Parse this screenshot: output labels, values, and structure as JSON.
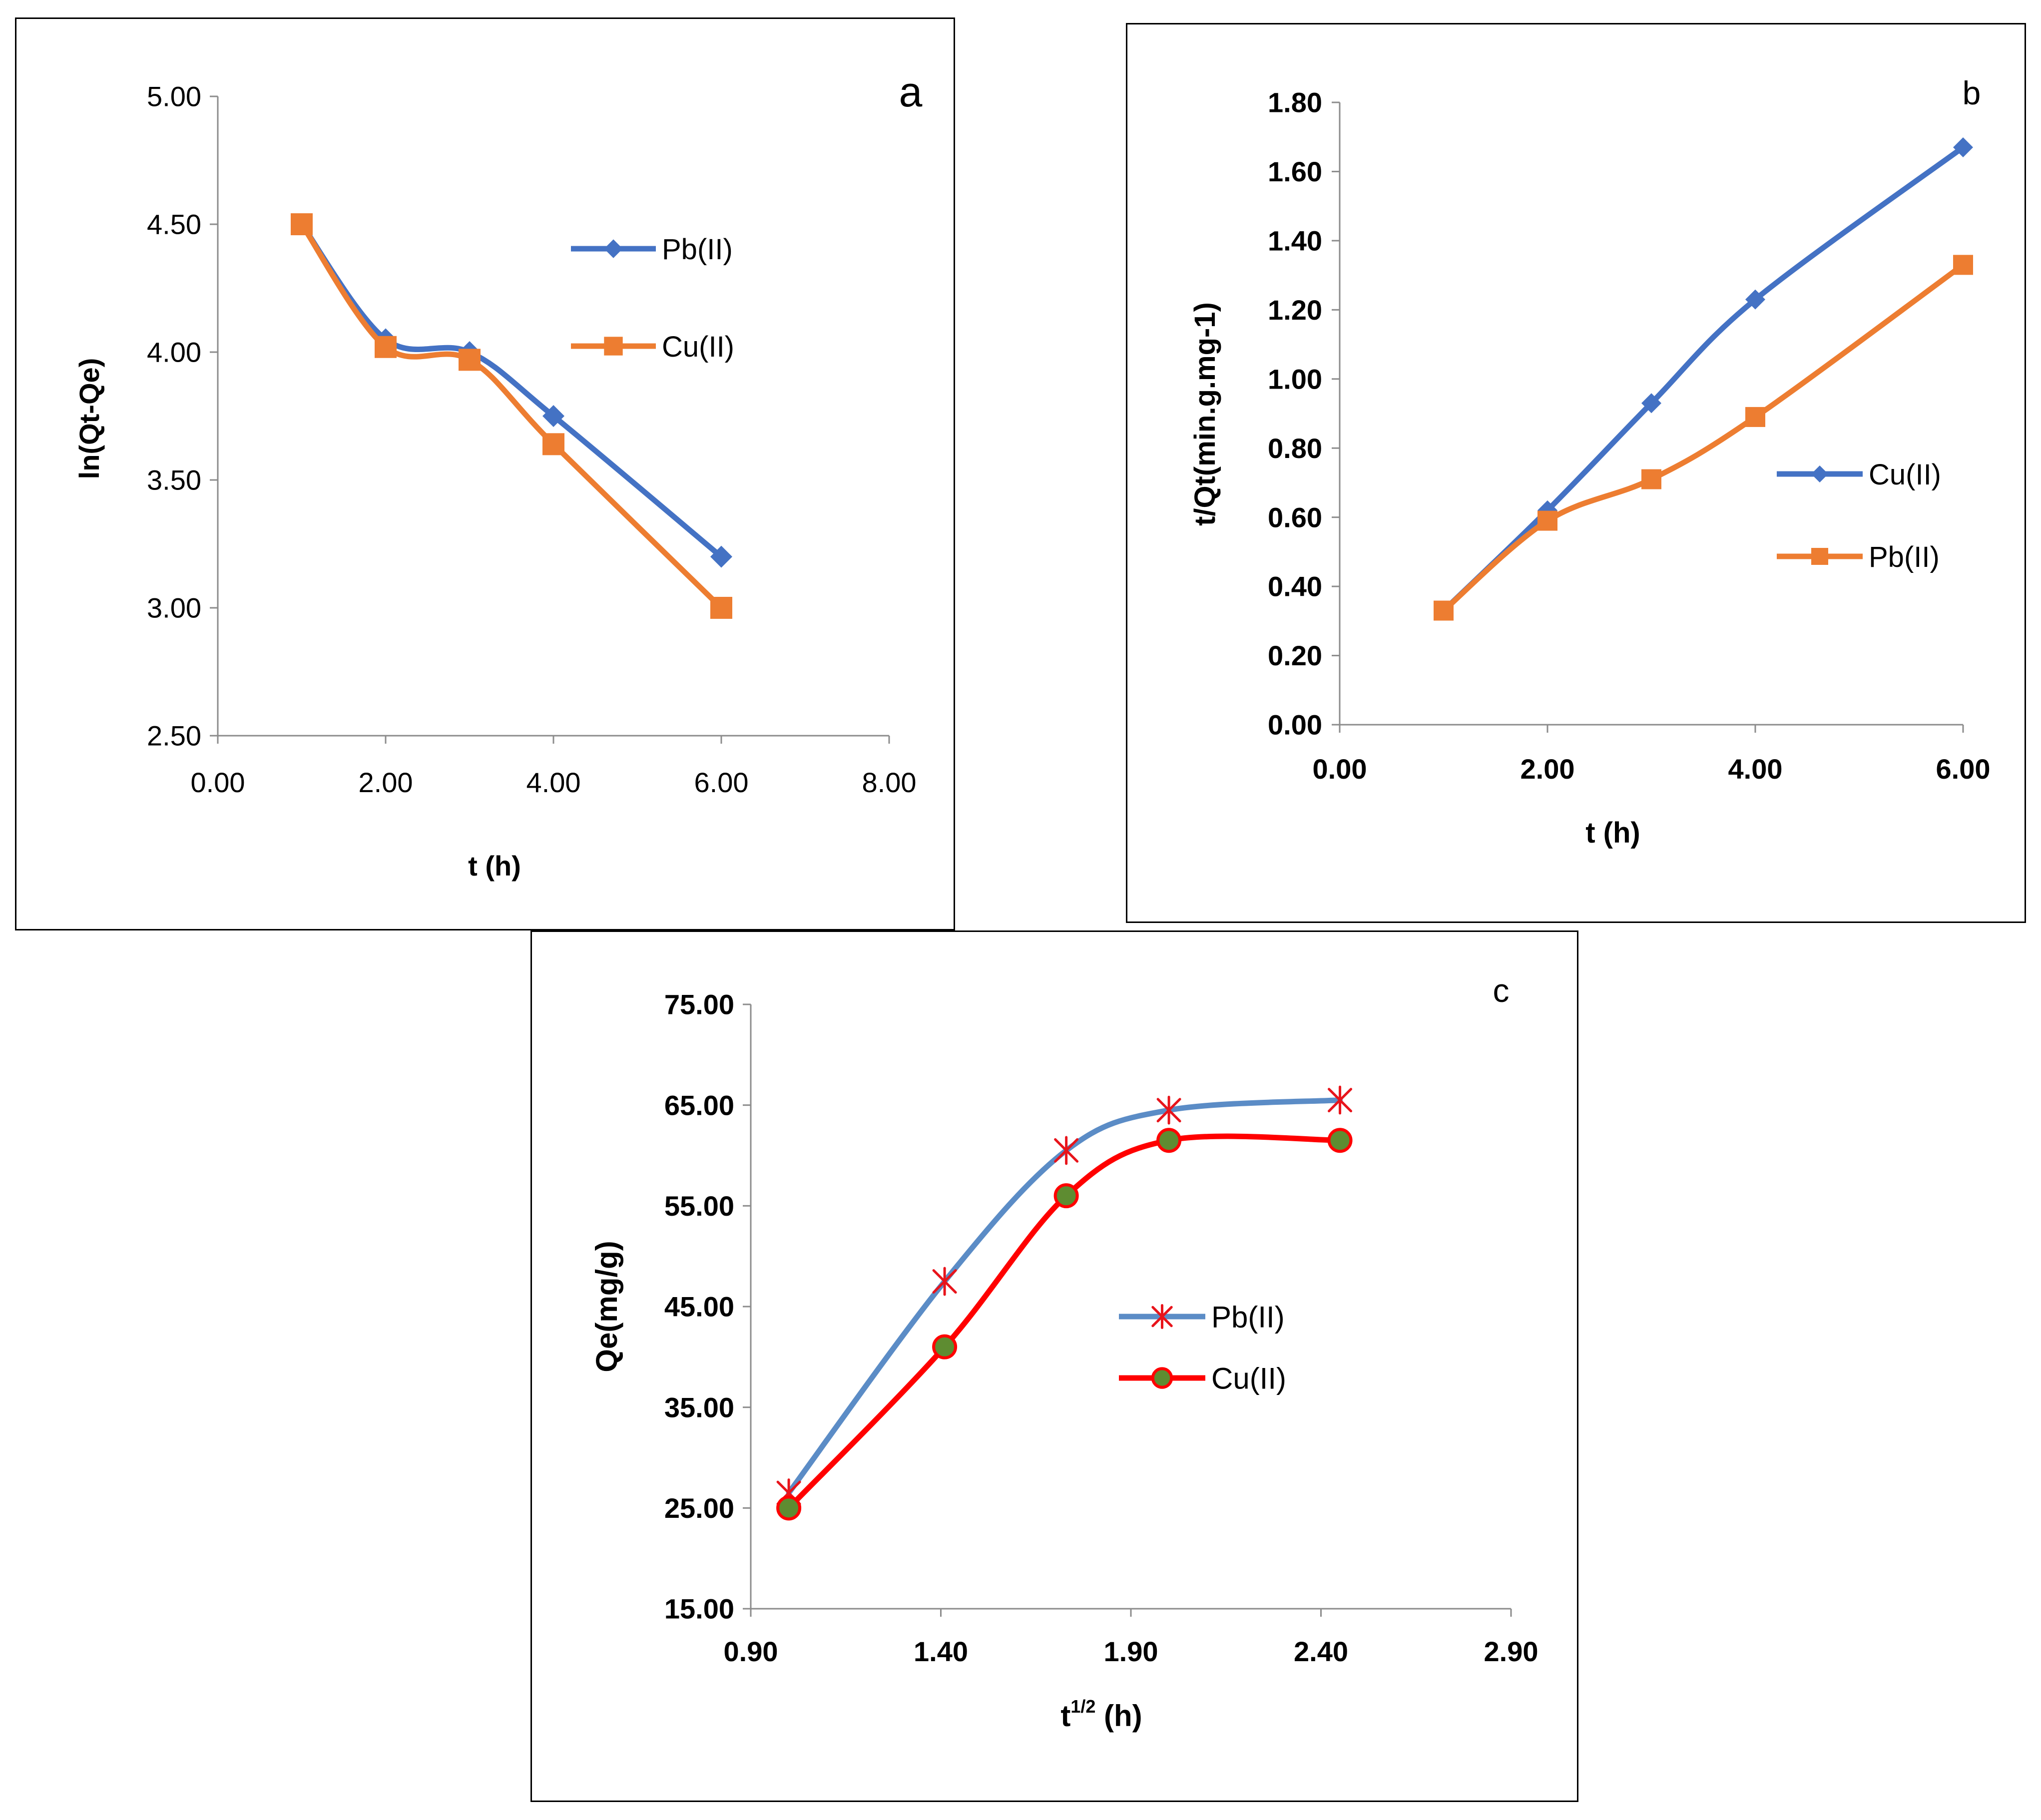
{
  "chart_data": [
    {
      "panel": "a",
      "type": "line",
      "title": "",
      "xlabel": "t (h)",
      "ylabel": "ln(Qt-Qe)",
      "xlim": [
        0,
        8
      ],
      "ylim": [
        2.5,
        5.0
      ],
      "xticks": [
        "0.00",
        "2.00",
        "4.00",
        "6.00",
        "8.00"
      ],
      "yticks": [
        "2.50",
        "3.00",
        "3.50",
        "4.00",
        "4.50",
        "5.00"
      ],
      "legend_position": "right",
      "series": [
        {
          "name": "Pb(II)",
          "color": "#4472C4",
          "marker": "diamond",
          "x": [
            1,
            2,
            3,
            4,
            6
          ],
          "y": [
            4.5,
            4.05,
            4.0,
            3.75,
            3.2
          ]
        },
        {
          "name": "Cu(II)",
          "color": "#ED7D31",
          "marker": "square",
          "x": [
            1,
            2,
            3,
            4,
            6
          ],
          "y": [
            4.5,
            4.02,
            3.97,
            3.64,
            3.0
          ]
        }
      ]
    },
    {
      "panel": "b",
      "type": "line",
      "title": "",
      "xlabel": "t (h)",
      "ylabel": "t/Qt(min.g.mg-1)",
      "xlim": [
        0,
        6
      ],
      "ylim": [
        0,
        1.8
      ],
      "xticks": [
        "0.00",
        "2.00",
        "4.00",
        "6.00"
      ],
      "yticks": [
        "0.00",
        "0.20",
        "0.40",
        "0.60",
        "0.80",
        "1.00",
        "1.20",
        "1.40",
        "1.60",
        "1.80"
      ],
      "legend_position": "right",
      "series": [
        {
          "name": "Cu(II)",
          "color": "#4472C4",
          "marker": "diamond",
          "x": [
            1,
            2,
            3,
            4,
            6
          ],
          "y": [
            0.33,
            0.62,
            0.93,
            1.23,
            1.67
          ]
        },
        {
          "name": "Pb(II)",
          "color": "#ED7D31",
          "marker": "square",
          "x": [
            1,
            2,
            3,
            4,
            6
          ],
          "y": [
            0.33,
            0.59,
            0.71,
            0.89,
            1.33
          ]
        }
      ]
    },
    {
      "panel": "c",
      "type": "line",
      "title": "",
      "xlabel": "t",
      "xlabel_sup": "1/2",
      "xlabel_suffix": " (h)",
      "ylabel": "Qe(mg/g)",
      "xlim": [
        0.9,
        2.9
      ],
      "ylim": [
        15,
        75
      ],
      "xticks": [
        "0.90",
        "1.40",
        "1.90",
        "2.40",
        "2.90"
      ],
      "yticks": [
        "15.00",
        "25.00",
        "35.00",
        "45.00",
        "55.00",
        "65.00",
        "75.00"
      ],
      "legend_position": "center-right",
      "series": [
        {
          "name": "Pb(II)",
          "color": "#5B8CC6",
          "marker": "asterisk",
          "marker_color": "#E8141B",
          "x": [
            1.0,
            1.41,
            1.73,
            2.0,
            2.45
          ],
          "y": [
            26.5,
            47.5,
            60.5,
            64.5,
            65.5
          ]
        },
        {
          "name": "Cu(II)",
          "color": "#FF0000",
          "marker": "circle",
          "marker_color": "#5E8C31",
          "x": [
            1.0,
            1.41,
            1.73,
            2.0,
            2.45
          ],
          "y": [
            25.0,
            41.0,
            56.0,
            61.5,
            61.5
          ]
        }
      ]
    }
  ]
}
